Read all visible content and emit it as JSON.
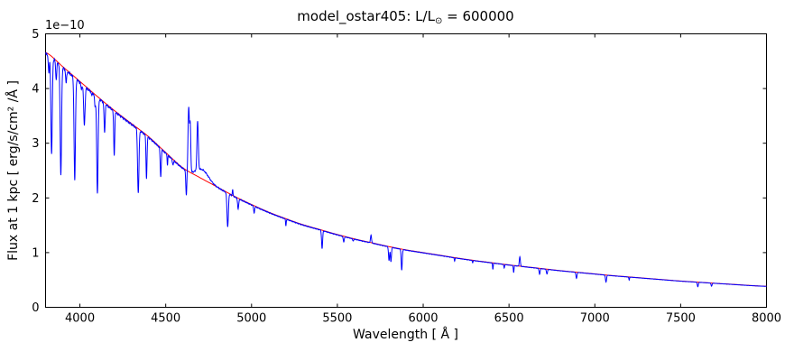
{
  "figure": {
    "background": "#ffffff",
    "frame_color": "#000000",
    "text_color": "#000000"
  },
  "chart_data": {
    "type": "line",
    "title": "model_ostar405: L/L⊙ = 600000",
    "title_parts": {
      "prefix": "model_ostar405: L/L",
      "subscript": "⊙",
      "suffix": " = 600000"
    },
    "xlabel": "Wavelength [ Å ]",
    "ylabel": "Flux at 1 kpc [ erg/s/cm² /Å ]",
    "y_offset_label": "1e−10",
    "flux_unit": "1e-10 erg/s/cm2/A at 1 kpc",
    "xlim": [
      3800,
      8000
    ],
    "ylim": [
      0,
      5
    ],
    "xticks": [
      4000,
      4500,
      5000,
      5500,
      6000,
      6500,
      7000,
      7500,
      8000
    ],
    "yticks": [
      0,
      1,
      2,
      3,
      4,
      5
    ],
    "grid": false,
    "legend": "none",
    "series": [
      {
        "name": "continuum fit",
        "color": "#ff0000",
        "anchor_start": 3800,
        "anchor_step": 100,
        "anchor_values": [
          4.66,
          4.4,
          4.13,
          3.86,
          3.6,
          3.36,
          3.12,
          2.83,
          2.55,
          2.37,
          2.2,
          2.03,
          1.88,
          1.74,
          1.62,
          1.51,
          1.42,
          1.33,
          1.25,
          1.18,
          1.11,
          1.05,
          1.0,
          0.95,
          0.9,
          0.855,
          0.815,
          0.775,
          0.74,
          0.705,
          0.67,
          0.64,
          0.61,
          0.58,
          0.555,
          0.53,
          0.505,
          0.48,
          0.46,
          0.44,
          0.42,
          0.4,
          0.385
        ]
      },
      {
        "name": "spectrum",
        "color": "#0000ff",
        "absorption_lines": [
          [
            3819,
            4.3,
            3
          ],
          [
            3835,
            2.8,
            4
          ],
          [
            3862,
            4.18,
            3
          ],
          [
            3889,
            2.42,
            4
          ],
          [
            3920,
            4.12,
            3
          ],
          [
            3970,
            2.35,
            4
          ],
          [
            4009,
            4.0,
            3
          ],
          [
            4026,
            3.35,
            4
          ],
          [
            4070,
            3.9,
            3
          ],
          [
            4089,
            3.68,
            3
          ],
          [
            4102,
            2.1,
            4
          ],
          [
            4144,
            3.2,
            3
          ],
          [
            4200,
            2.8,
            3
          ],
          [
            4340,
            2.1,
            4
          ],
          [
            4388,
            2.38,
            3
          ],
          [
            4471,
            2.4,
            3
          ],
          [
            4510,
            2.62,
            2
          ],
          [
            4542,
            2.62,
            3
          ],
          [
            4620,
            2.05,
            3
          ],
          [
            4861,
            1.48,
            4
          ],
          [
            4922,
            1.8,
            3
          ],
          [
            5015,
            1.74,
            3
          ],
          [
            5200,
            1.5,
            2
          ],
          [
            5411,
            1.08,
            3
          ],
          [
            5537,
            1.2,
            3
          ],
          [
            5592,
            1.22,
            3
          ],
          [
            5801,
            0.86,
            3
          ],
          [
            5812,
            0.84,
            3
          ],
          [
            5875,
            0.68,
            3
          ],
          [
            6183,
            0.85,
            2
          ],
          [
            6288,
            0.82,
            2
          ],
          [
            6406,
            0.7,
            2
          ],
          [
            6472,
            0.72,
            2
          ],
          [
            6527,
            0.64,
            2
          ],
          [
            6678,
            0.61,
            3
          ],
          [
            6721,
            0.61,
            3
          ],
          [
            6893,
            0.53,
            3
          ],
          [
            7065,
            0.46,
            3
          ],
          [
            7200,
            0.5,
            2
          ],
          [
            7600,
            0.38,
            3
          ],
          [
            7680,
            0.39,
            3
          ]
        ],
        "emission_lines": [
          [
            4634,
            3.65,
            4
          ],
          [
            4643,
            3.3,
            3
          ],
          [
            4686,
            3.28,
            4
          ],
          [
            4890,
            2.16,
            2
          ],
          [
            5696,
            1.33,
            3
          ],
          [
            6563,
            0.93,
            3
          ]
        ],
        "broad_emission": [
          [
            4715,
            0.18,
            35
          ]
        ],
        "noise": {
          "amplitude": 0.0065,
          "bias": -0.0045
        }
      }
    ]
  }
}
